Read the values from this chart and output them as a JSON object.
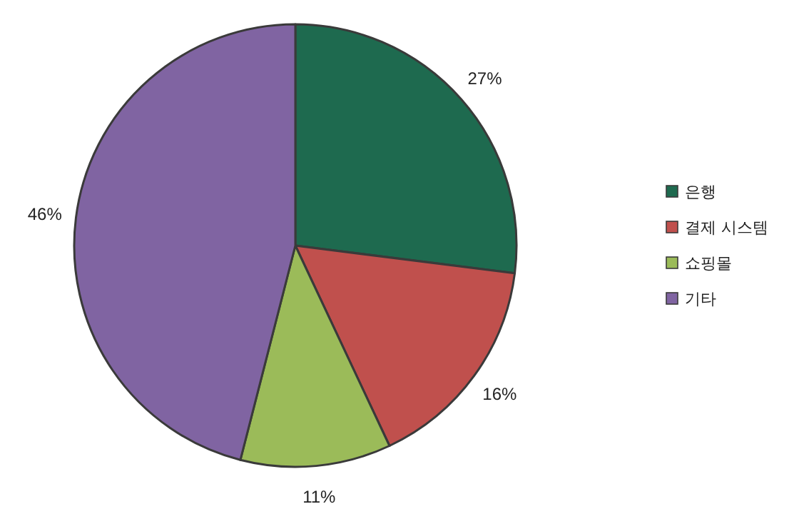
{
  "chart_data": {
    "type": "pie",
    "categories": [
      "은행",
      "결제 시스템",
      "쇼핑몰",
      "기타"
    ],
    "values": [
      27,
      16,
      11,
      46
    ],
    "colors": [
      "#1e6a4f",
      "#c0504d",
      "#9bbb59",
      "#8064a2"
    ],
    "value_labels": [
      "27%",
      "16%",
      "11%",
      "46%"
    ],
    "legend": "right"
  }
}
